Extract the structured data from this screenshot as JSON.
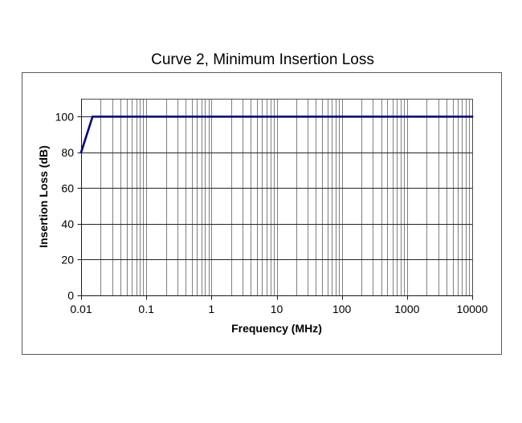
{
  "chart": {
    "title": "Curve 2, Minimum Insertion Loss"
  },
  "chart_data": {
    "type": "line",
    "title": "Curve 2, Minimum Insertion Loss",
    "xlabel": "Frequency (MHz)",
    "ylabel": "Insertion Loss (dB)",
    "x_scale": "log",
    "xlim": [
      0.01,
      10000
    ],
    "ylim": [
      0,
      110
    ],
    "y_ticks": [
      0,
      20,
      40,
      60,
      80,
      100
    ],
    "y_tick_labels": [
      "0",
      "20",
      "40",
      "60",
      "80",
      "100"
    ],
    "x_ticks": [
      0.01,
      0.1,
      1,
      10,
      100,
      1000,
      10000
    ],
    "x_tick_labels": [
      "0.01",
      "0.1",
      "1",
      "10",
      "100",
      "1000",
      "10000"
    ],
    "grid": {
      "major_horizontal": true,
      "minor_vertical_log": true,
      "legend": "none"
    },
    "series": [
      {
        "name": "Curve 2, Minimum Insertion Loss",
        "color": "#000080",
        "points": [
          [
            0.01,
            80
          ],
          [
            0.015,
            100
          ],
          [
            10000,
            100
          ]
        ]
      }
    ]
  },
  "colors": {
    "series": "#000080",
    "grid_vertical": "#808080",
    "grid_horizontal": "#262626",
    "axis": "#1a1a1a",
    "plot_border": "#4d4d4d",
    "chart_border": "#595959",
    "text": "#000000",
    "background": "#ffffff"
  }
}
